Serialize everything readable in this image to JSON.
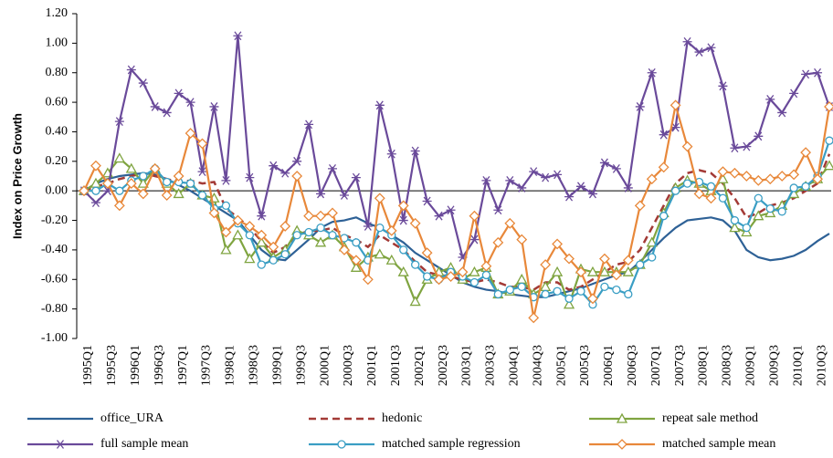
{
  "chart_data": {
    "type": "line",
    "y_label": "Index on Price Growth",
    "categories": [
      "1995Q1",
      null,
      "1995Q3",
      null,
      "1996Q1",
      null,
      "1996Q3",
      null,
      "1997Q1",
      null,
      "1997Q3",
      null,
      "1998Q1",
      null,
      "1998Q3",
      null,
      "1999Q1",
      null,
      "1999Q3",
      null,
      "2000Q1",
      null,
      "2000Q3",
      null,
      "2001Q1",
      null,
      "2001Q3",
      null,
      "2002Q1",
      null,
      "2002Q3",
      null,
      "2003Q1",
      null,
      "2003Q3",
      null,
      "2004Q1",
      null,
      "2004Q3",
      null,
      "2005Q1",
      null,
      "2005Q3",
      null,
      "2006Q1",
      null,
      "2006Q3",
      null,
      "2007Q1",
      null,
      "2007Q3",
      null,
      "2008Q1",
      null,
      "2008Q3",
      null,
      "2009Q1",
      null,
      "2009Q3",
      null,
      "2010Q1",
      null,
      "2010Q3",
      null
    ],
    "ylim": [
      -1.0,
      1.2
    ],
    "yticks": [
      {
        "value": -1.0,
        "label": "-1.00"
      },
      {
        "value": -0.8,
        "label": "-0.80"
      },
      {
        "value": -0.6,
        "label": "-0.60"
      },
      {
        "value": -0.4,
        "label": "-0.40"
      },
      {
        "value": -0.2,
        "label": "-0.20"
      },
      {
        "value": 0,
        "label": "0.00"
      },
      {
        "value": 0.2,
        "label": "0.20"
      },
      {
        "value": 0.4,
        "label": "0.40"
      },
      {
        "value": 0.6,
        "label": "0.60"
      },
      {
        "value": 0.8,
        "label": "0.80"
      },
      {
        "value": 1.0,
        "label": "1.00"
      },
      {
        "value": 1.2,
        "label": "1.20"
      }
    ],
    "grid": false,
    "legend": "bottom",
    "series": [
      {
        "name": "office_URA",
        "color": "#2e6196",
        "marker": "none",
        "dashed": false,
        "values": [
          0,
          0.05,
          0.08,
          0.1,
          0.11,
          0.12,
          0.11,
          0.08,
          0.04,
          0,
          -0.05,
          -0.1,
          -0.15,
          -0.2,
          -0.3,
          -0.4,
          -0.46,
          -0.47,
          -0.4,
          -0.33,
          -0.25,
          -0.21,
          -0.2,
          -0.18,
          -0.22,
          -0.25,
          -0.3,
          -0.35,
          -0.42,
          -0.47,
          -0.52,
          -0.57,
          -0.62,
          -0.65,
          -0.67,
          -0.68,
          -0.7,
          -0.71,
          -0.72,
          -0.72,
          -0.7,
          -0.68,
          -0.66,
          -0.63,
          -0.6,
          -0.57,
          -0.55,
          -0.48,
          -0.4,
          -0.32,
          -0.25,
          -0.2,
          -0.19,
          -0.18,
          -0.2,
          -0.27,
          -0.4,
          -0.45,
          -0.47,
          -0.46,
          -0.44,
          -0.4,
          -0.34,
          -0.29
        ]
      },
      {
        "name": "hedonic",
        "color": "#a33a36",
        "marker": "none",
        "dashed": true,
        "values": [
          0,
          0.03,
          0.05,
          0.08,
          0.1,
          0.12,
          0.1,
          0.08,
          0.06,
          0.07,
          0.05,
          0.06,
          -0.12,
          -0.18,
          -0.25,
          -0.34,
          -0.42,
          -0.38,
          -0.3,
          -0.27,
          -0.27,
          -0.25,
          -0.3,
          -0.33,
          -0.38,
          -0.3,
          -0.35,
          -0.4,
          -0.48,
          -0.55,
          -0.57,
          -0.58,
          -0.6,
          -0.62,
          -0.6,
          -0.62,
          -0.65,
          -0.65,
          -0.67,
          -0.62,
          -0.62,
          -0.67,
          -0.65,
          -0.6,
          -0.55,
          -0.5,
          -0.48,
          -0.4,
          -0.25,
          -0.1,
          0.05,
          0.12,
          0.14,
          0.12,
          0.05,
          -0.05,
          -0.18,
          -0.15,
          -0.1,
          -0.08,
          -0.05,
          0,
          0.05,
          0.25
        ]
      },
      {
        "name": "repeat sale method",
        "color": "#7fa440",
        "marker": "triangle",
        "dashed": false,
        "values": [
          0,
          0.05,
          0.12,
          0.22,
          0.15,
          0.05,
          0.15,
          0.05,
          -0.02,
          0.05,
          -0.03,
          -0.05,
          -0.4,
          -0.3,
          -0.46,
          -0.35,
          -0.45,
          -0.4,
          -0.27,
          -0.3,
          -0.35,
          -0.3,
          -0.38,
          -0.52,
          -0.45,
          -0.43,
          -0.47,
          -0.55,
          -0.75,
          -0.6,
          -0.55,
          -0.52,
          -0.6,
          -0.55,
          -0.52,
          -0.7,
          -0.68,
          -0.6,
          -0.7,
          -0.65,
          -0.55,
          -0.77,
          -0.53,
          -0.55,
          -0.55,
          -0.55,
          -0.55,
          -0.5,
          -0.35,
          -0.15,
          0.02,
          0.07,
          0.05,
          0,
          0.08,
          -0.25,
          -0.28,
          -0.17,
          -0.15,
          -0.1,
          -0.02,
          0.03,
          0.08,
          0.17
        ]
      },
      {
        "name": "full sample mean",
        "color": "#6a4a9a",
        "marker": "star",
        "dashed": false,
        "values": [
          0,
          -0.08,
          0,
          0.47,
          0.82,
          0.73,
          0.57,
          0.53,
          0.66,
          0.6,
          0.13,
          0.57,
          0.07,
          1.05,
          0.09,
          -0.17,
          0.17,
          0.12,
          0.2,
          0.45,
          -0.02,
          0.15,
          -0.03,
          0.09,
          -0.24,
          0.58,
          0.25,
          -0.2,
          0.27,
          -0.07,
          -0.17,
          -0.13,
          -0.45,
          -0.33,
          0.07,
          -0.13,
          0.07,
          0.02,
          0.13,
          0.09,
          0.11,
          -0.04,
          0.03,
          -0.02,
          0.19,
          0.15,
          0.02,
          0.57,
          0.8,
          0.38,
          0.43,
          1.01,
          0.94,
          0.97,
          0.71,
          0.29,
          0.3,
          0.37,
          0.62,
          0.53,
          0.66,
          0.79,
          0.8,
          0.57
        ]
      },
      {
        "name": "matched sample regression",
        "color": "#3a9ec4",
        "marker": "circle",
        "dashed": false,
        "values": [
          0,
          0,
          0.05,
          0,
          0.07,
          0.1,
          0.15,
          0.06,
          0.06,
          0.05,
          -0.03,
          -0.12,
          -0.1,
          -0.22,
          -0.3,
          -0.5,
          -0.47,
          -0.43,
          -0.3,
          -0.28,
          -0.25,
          -0.3,
          -0.32,
          -0.35,
          -0.47,
          -0.25,
          -0.3,
          -0.4,
          -0.5,
          -0.58,
          -0.6,
          -0.55,
          -0.58,
          -0.62,
          -0.57,
          -0.7,
          -0.67,
          -0.65,
          -0.72,
          -0.7,
          -0.68,
          -0.73,
          -0.68,
          -0.77,
          -0.65,
          -0.67,
          -0.7,
          -0.5,
          -0.45,
          -0.17,
          0,
          0.05,
          0.06,
          0.03,
          -0.05,
          -0.2,
          -0.25,
          -0.05,
          -0.12,
          -0.14,
          0.02,
          0.03,
          0.1,
          0.34
        ]
      },
      {
        "name": "matched sample mean",
        "color": "#e8883a",
        "marker": "diamond",
        "dashed": false,
        "values": [
          0,
          0.17,
          0.05,
          -0.1,
          0.05,
          -0.02,
          0.15,
          -0.03,
          0.1,
          0.39,
          0.32,
          -0.15,
          -0.28,
          -0.2,
          -0.24,
          -0.3,
          -0.38,
          -0.24,
          0.1,
          -0.17,
          -0.17,
          -0.15,
          -0.4,
          -0.47,
          -0.6,
          -0.05,
          -0.27,
          -0.1,
          -0.22,
          -0.42,
          -0.6,
          -0.58,
          -0.55,
          -0.17,
          -0.51,
          -0.35,
          -0.22,
          -0.33,
          -0.86,
          -0.5,
          -0.36,
          -0.46,
          -0.55,
          -0.73,
          -0.46,
          -0.57,
          -0.47,
          -0.1,
          0.08,
          0.16,
          0.58,
          0.3,
          -0.02,
          -0.05,
          0.13,
          0.12,
          0.1,
          0.07,
          0.08,
          0.1,
          0.11,
          0.26,
          0.08,
          0.57
        ]
      }
    ]
  }
}
